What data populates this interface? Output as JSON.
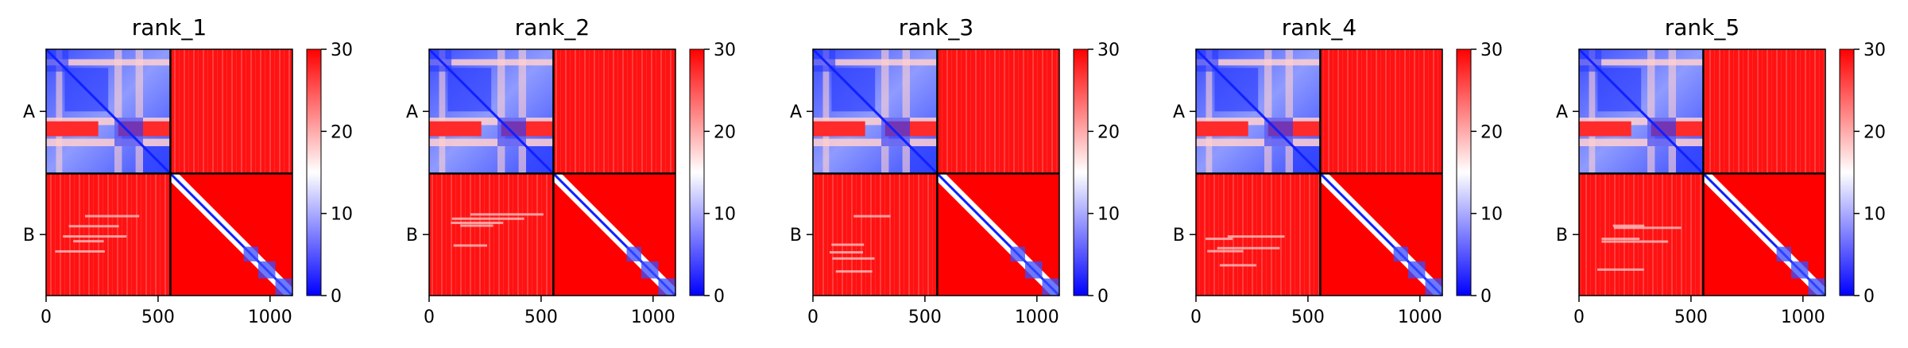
{
  "chart_data": [
    {
      "type": "heatmap",
      "title": "rank_1",
      "x_ticks": [
        0,
        500,
        1000
      ],
      "y_ticks": [
        "A",
        "B"
      ],
      "xlim": [
        0,
        1100
      ],
      "ylim": [
        0,
        1100
      ],
      "chain_boundary": 555,
      "colorbar": {
        "ticks": [
          0,
          10,
          20,
          30
        ],
        "range": [
          0,
          30
        ],
        "colormap": "bwr"
      }
    },
    {
      "type": "heatmap",
      "title": "rank_2",
      "x_ticks": [
        0,
        500,
        1000
      ],
      "y_ticks": [
        "A",
        "B"
      ],
      "xlim": [
        0,
        1100
      ],
      "ylim": [
        0,
        1100
      ],
      "chain_boundary": 555,
      "colorbar": {
        "ticks": [
          0,
          10,
          20,
          30
        ],
        "range": [
          0,
          30
        ],
        "colormap": "bwr"
      }
    },
    {
      "type": "heatmap",
      "title": "rank_3",
      "x_ticks": [
        0,
        500,
        1000
      ],
      "y_ticks": [
        "A",
        "B"
      ],
      "xlim": [
        0,
        1100
      ],
      "ylim": [
        0,
        1100
      ],
      "chain_boundary": 555,
      "colorbar": {
        "ticks": [
          0,
          10,
          20,
          30
        ],
        "range": [
          0,
          30
        ],
        "colormap": "bwr"
      }
    },
    {
      "type": "heatmap",
      "title": "rank_4",
      "x_ticks": [
        0,
        500,
        1000
      ],
      "y_ticks": [
        "A",
        "B"
      ],
      "xlim": [
        0,
        1100
      ],
      "ylim": [
        0,
        1100
      ],
      "chain_boundary": 555,
      "colorbar": {
        "ticks": [
          0,
          10,
          20,
          30
        ],
        "range": [
          0,
          30
        ],
        "colormap": "bwr"
      }
    },
    {
      "type": "heatmap",
      "title": "rank_5",
      "x_ticks": [
        0,
        500,
        1000
      ],
      "y_ticks": [
        "A",
        "B"
      ],
      "xlim": [
        0,
        1100
      ],
      "ylim": [
        0,
        1100
      ],
      "chain_boundary": 555,
      "colorbar": {
        "ticks": [
          0,
          10,
          20,
          30
        ],
        "range": [
          0,
          30
        ],
        "colormap": "bwr"
      }
    }
  ],
  "colors": {
    "high": "#ff0000",
    "mid": "#ffffff",
    "low": "#0000ff",
    "divider": "#000000"
  }
}
